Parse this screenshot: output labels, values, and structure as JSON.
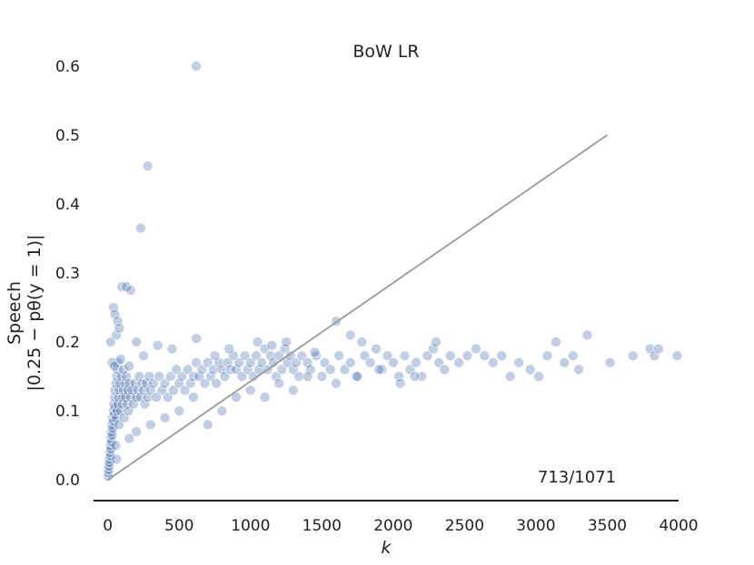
{
  "chart_data": {
    "type": "scatter",
    "title": "BoW LR",
    "xlabel": "k",
    "ylabel_line1": "Speech",
    "ylabel_line2": "|0.25 − pθ(y = 1)|",
    "annotation": "713/1071",
    "xlim": [
      -100,
      4000
    ],
    "ylim": [
      -0.03,
      0.63
    ],
    "xticks": [
      0,
      500,
      1000,
      1500,
      2000,
      2500,
      3000,
      3500,
      4000
    ],
    "xtick_labels": [
      "0",
      "500",
      "1000",
      "1500",
      "2000",
      "2500",
      "3000",
      "3500",
      "4000"
    ],
    "yticks": [
      0.0,
      0.1,
      0.2,
      0.3,
      0.4,
      0.5,
      0.6
    ],
    "ytick_labels": [
      "0.0",
      "0.1",
      "0.2",
      "0.3",
      "0.4",
      "0.5",
      "0.6"
    ],
    "grid": false,
    "point_color": "#4c72b0",
    "line_color": "#999999",
    "reference_line": {
      "x": [
        0,
        3500
      ],
      "y": [
        0.0,
        0.5
      ]
    },
    "series": [
      {
        "points": [
          [
            2,
            0.005
          ],
          [
            4,
            0.01
          ],
          [
            6,
            0.015
          ],
          [
            8,
            0.02
          ],
          [
            10,
            0.03
          ],
          [
            12,
            0.025
          ],
          [
            14,
            0.04
          ],
          [
            16,
            0.05
          ],
          [
            18,
            0.035
          ],
          [
            20,
            0.06
          ],
          [
            22,
            0.045
          ],
          [
            24,
            0.07
          ],
          [
            26,
            0.055
          ],
          [
            28,
            0.08
          ],
          [
            30,
            0.065
          ],
          [
            32,
            0.09
          ],
          [
            35,
            0.075
          ],
          [
            38,
            0.1
          ],
          [
            40,
            0.085
          ],
          [
            42,
            0.11
          ],
          [
            45,
            0.095
          ],
          [
            48,
            0.12
          ],
          [
            50,
            0.105
          ],
          [
            52,
            0.13
          ],
          [
            55,
            0.05
          ],
          [
            58,
            0.14
          ],
          [
            60,
            0.09
          ],
          [
            62,
            0.15
          ],
          [
            65,
            0.1
          ],
          [
            68,
            0.16
          ],
          [
            70,
            0.11
          ],
          [
            72,
            0.17
          ],
          [
            75,
            0.12
          ],
          [
            78,
            0.08
          ],
          [
            80,
            0.13
          ],
          [
            85,
            0.14
          ],
          [
            90,
            0.1
          ],
          [
            95,
            0.15
          ],
          [
            100,
            0.11
          ],
          [
            105,
            0.12
          ],
          [
            110,
            0.13
          ],
          [
            115,
            0.09
          ],
          [
            120,
            0.14
          ],
          [
            125,
            0.12
          ],
          [
            130,
            0.15
          ],
          [
            135,
            0.11
          ],
          [
            140,
            0.13
          ],
          [
            145,
            0.1
          ],
          [
            150,
            0.14
          ],
          [
            160,
            0.12
          ],
          [
            170,
            0.13
          ],
          [
            180,
            0.11
          ],
          [
            190,
            0.14
          ],
          [
            200,
            0.12
          ],
          [
            210,
            0.13
          ],
          [
            220,
            0.15
          ],
          [
            230,
            0.12
          ],
          [
            240,
            0.14
          ],
          [
            250,
            0.13
          ],
          [
            260,
            0.11
          ],
          [
            270,
            0.14
          ],
          [
            280,
            0.12
          ],
          [
            290,
            0.15
          ],
          [
            300,
            0.13
          ],
          [
            320,
            0.14
          ],
          [
            340,
            0.12
          ],
          [
            360,
            0.15
          ],
          [
            380,
            0.13
          ],
          [
            400,
            0.14
          ],
          [
            420,
            0.12
          ],
          [
            440,
            0.15
          ],
          [
            460,
            0.13
          ],
          [
            480,
            0.16
          ],
          [
            500,
            0.14
          ],
          [
            520,
            0.15
          ],
          [
            540,
            0.13
          ],
          [
            560,
            0.16
          ],
          [
            580,
            0.14
          ],
          [
            600,
            0.15
          ],
          [
            620,
            0.17
          ],
          [
            640,
            0.15
          ],
          [
            660,
            0.16
          ],
          [
            680,
            0.14
          ],
          [
            700,
            0.17
          ],
          [
            720,
            0.15
          ],
          [
            740,
            0.16
          ],
          [
            760,
            0.14
          ],
          [
            780,
            0.17
          ],
          [
            800,
            0.16
          ],
          [
            820,
            0.15
          ],
          [
            840,
            0.17
          ],
          [
            860,
            0.16
          ],
          [
            880,
            0.18
          ],
          [
            900,
            0.16
          ],
          [
            920,
            0.17
          ],
          [
            940,
            0.15
          ],
          [
            960,
            0.18
          ],
          [
            980,
            0.16
          ],
          [
            1000,
            0.17
          ],
          [
            1020,
            0.15
          ],
          [
            1040,
            0.18
          ],
          [
            1060,
            0.16
          ],
          [
            1080,
            0.17
          ],
          [
            1100,
            0.19
          ],
          [
            1120,
            0.16
          ],
          [
            1140,
            0.18
          ],
          [
            1160,
            0.17
          ],
          [
            1180,
            0.15
          ],
          [
            1200,
            0.18
          ],
          [
            1220,
            0.16
          ],
          [
            1240,
            0.19
          ],
          [
            1260,
            0.17
          ],
          [
            1280,
            0.18
          ],
          [
            1300,
            0.16
          ],
          [
            1320,
            0.17
          ],
          [
            1340,
            0.15
          ],
          [
            1360,
            0.18
          ],
          [
            1400,
            0.17
          ],
          [
            1420,
            0.16
          ],
          [
            1460,
            0.18
          ],
          [
            1500,
            0.15
          ],
          [
            1520,
            0.17
          ],
          [
            1560,
            0.16
          ],
          [
            1600,
            0.23
          ],
          [
            1620,
            0.18
          ],
          [
            1660,
            0.16
          ],
          [
            1700,
            0.17
          ],
          [
            1740,
            0.15
          ],
          [
            1780,
            0.2
          ],
          [
            1800,
            0.18
          ],
          [
            1840,
            0.17
          ],
          [
            1880,
            0.19
          ],
          [
            1920,
            0.16
          ],
          [
            1960,
            0.18
          ],
          [
            2000,
            0.17
          ],
          [
            2040,
            0.15
          ],
          [
            2080,
            0.18
          ],
          [
            2120,
            0.16
          ],
          [
            2160,
            0.17
          ],
          [
            2200,
            0.15
          ],
          [
            2240,
            0.18
          ],
          [
            2280,
            0.19
          ],
          [
            2320,
            0.17
          ],
          [
            2360,
            0.16
          ],
          [
            2400,
            0.18
          ],
          [
            2460,
            0.17
          ],
          [
            2520,
            0.18
          ],
          [
            2580,
            0.19
          ],
          [
            2640,
            0.18
          ],
          [
            2700,
            0.17
          ],
          [
            2760,
            0.18
          ],
          [
            2820,
            0.15
          ],
          [
            2880,
            0.17
          ],
          [
            2960,
            0.16
          ],
          [
            3020,
            0.15
          ],
          [
            3080,
            0.18
          ],
          [
            3140,
            0.2
          ],
          [
            3200,
            0.17
          ],
          [
            3260,
            0.18
          ],
          [
            3300,
            0.16
          ],
          [
            3360,
            0.21
          ],
          [
            3520,
            0.17
          ],
          [
            3680,
            0.18
          ],
          [
            3800,
            0.19
          ],
          [
            3830,
            0.18
          ],
          [
            3860,
            0.19
          ],
          [
            3990,
            0.18
          ],
          [
            20,
            0.2
          ],
          [
            40,
            0.25
          ],
          [
            50,
            0.24
          ],
          [
            60,
            0.21
          ],
          [
            70,
            0.23
          ],
          [
            80,
            0.22
          ],
          [
            100,
            0.28
          ],
          [
            130,
            0.28
          ],
          [
            160,
            0.275
          ],
          [
            200,
            0.2
          ],
          [
            230,
            0.365
          ],
          [
            280,
            0.455
          ],
          [
            620,
            0.6
          ],
          [
            30,
            0.17
          ],
          [
            45,
            0.165
          ],
          [
            90,
            0.175
          ],
          [
            110,
            0.16
          ],
          [
            150,
            0.165
          ],
          [
            250,
            0.18
          ],
          [
            350,
            0.195
          ],
          [
            450,
            0.19
          ],
          [
            620,
            0.205
          ],
          [
            750,
            0.18
          ],
          [
            850,
            0.19
          ],
          [
            1050,
            0.2
          ],
          [
            1150,
            0.195
          ],
          [
            1250,
            0.2
          ],
          [
            1450,
            0.185
          ],
          [
            1700,
            0.21
          ],
          [
            2300,
            0.2
          ],
          [
            700,
            0.08
          ],
          [
            800,
            0.1
          ],
          [
            900,
            0.12
          ],
          [
            1000,
            0.13
          ],
          [
            1100,
            0.12
          ],
          [
            1200,
            0.14
          ],
          [
            1300,
            0.13
          ],
          [
            1400,
            0.15
          ],
          [
            1600,
            0.14
          ],
          [
            1750,
            0.15
          ],
          [
            1900,
            0.16
          ],
          [
            2050,
            0.14
          ],
          [
            2150,
            0.15
          ],
          [
            600,
            0.12
          ],
          [
            500,
            0.1
          ],
          [
            400,
            0.09
          ],
          [
            300,
            0.08
          ],
          [
            200,
            0.07
          ],
          [
            150,
            0.06
          ],
          [
            60,
            0.03
          ]
        ]
      }
    ]
  }
}
